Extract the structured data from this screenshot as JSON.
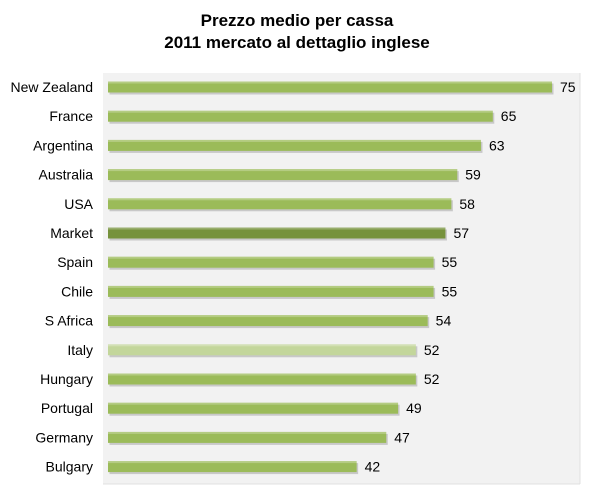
{
  "chart_data": {
    "type": "bar",
    "orientation": "horizontal",
    "title_lines": [
      "Prezzo medio per cassa",
      "2011 mercato al dettaglio inglese"
    ],
    "categories": [
      "New Zealand",
      "France",
      "Argentina",
      "Australia",
      "USA",
      "Market",
      "Spain",
      "Chile",
      "S Africa",
      "Italy",
      "Hungary",
      "Portugal",
      "Germany",
      "Bulgary"
    ],
    "values": [
      75,
      65,
      63,
      59,
      58,
      57,
      55,
      55,
      54,
      52,
      52,
      49,
      47,
      42
    ],
    "data_labels": [
      "75",
      "65",
      "63",
      "59",
      "58",
      "57",
      "55",
      "55",
      "54",
      "52",
      "52",
      "49",
      "47",
      "42"
    ],
    "xlim": [
      0,
      75
    ],
    "grid": false,
    "legend": "none",
    "colors": {
      "default_bar": "#9bbb59",
      "highlight_market": "#76923c",
      "highlight_italy": "#c3d69b",
      "plot_background": "#f2f2f2"
    },
    "bar_colors": [
      "#9bbb59",
      "#9bbb59",
      "#9bbb59",
      "#9bbb59",
      "#9bbb59",
      "#76923c",
      "#9bbb59",
      "#9bbb59",
      "#9bbb59",
      "#c3d69b",
      "#9bbb59",
      "#9bbb59",
      "#9bbb59",
      "#9bbb59"
    ]
  }
}
